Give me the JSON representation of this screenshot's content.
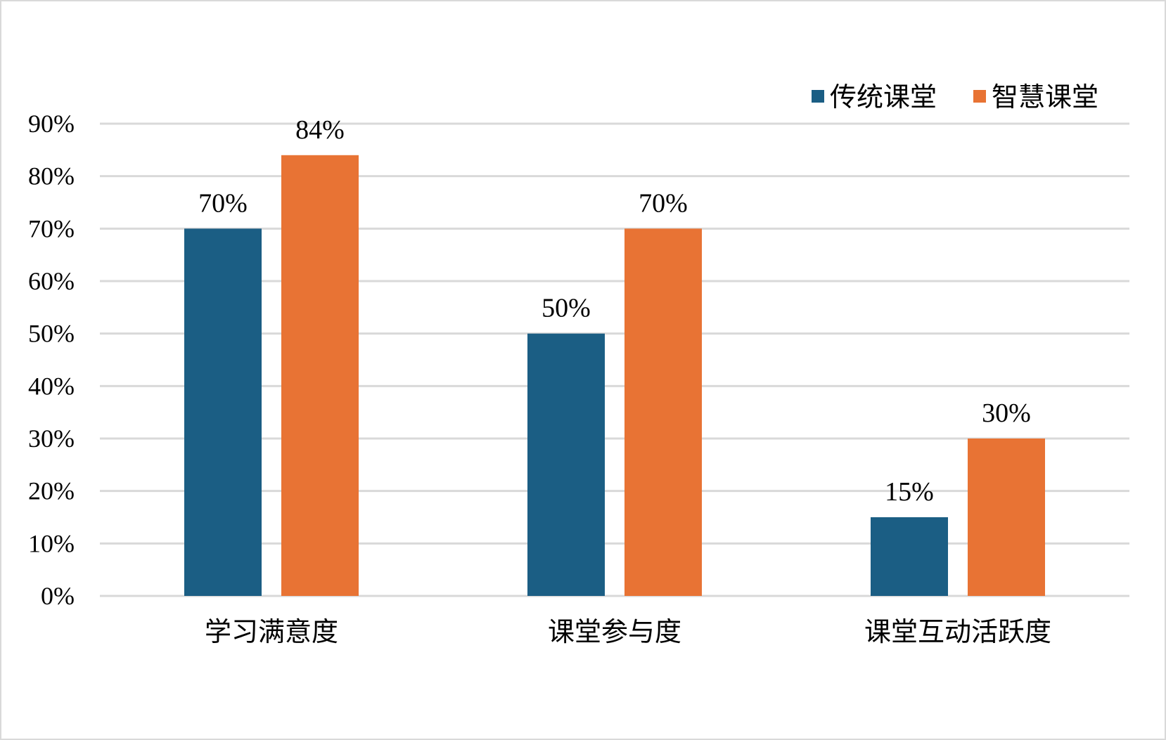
{
  "chart_data": {
    "type": "bar",
    "categories": [
      "学习满意度",
      "课堂参与度",
      "课堂互动活跃度"
    ],
    "series": [
      {
        "name": "传统课堂",
        "values": [
          70,
          50,
          15
        ],
        "color": "#1b5e84"
      },
      {
        "name": "智慧课堂",
        "values": [
          84,
          70,
          30
        ],
        "color": "#e87334"
      }
    ],
    "title": "",
    "xlabel": "",
    "ylabel": "",
    "ylim": [
      0,
      90
    ],
    "yticks": [
      0,
      10,
      20,
      30,
      40,
      50,
      60,
      70,
      80,
      90
    ],
    "ytick_labels": [
      "0%",
      "10%",
      "20%",
      "30%",
      "40%",
      "50%",
      "60%",
      "70%",
      "80%",
      "90%"
    ],
    "value_suffix": "%",
    "grid": true,
    "gridline_color": "#d9d9d9",
    "legend_position": "top-right"
  }
}
